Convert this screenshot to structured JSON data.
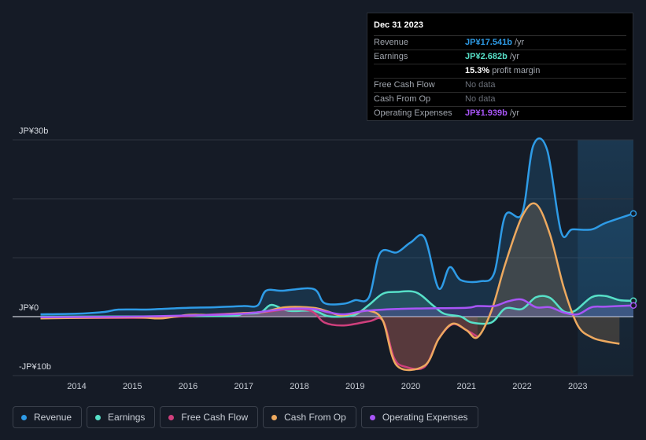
{
  "tooltip": {
    "date": "Dec 31 2023",
    "rows": [
      {
        "label": "Revenue",
        "value": "JP¥17.541b",
        "unit": "/yr",
        "color": "#2e9be6"
      },
      {
        "label": "Earnings",
        "value": "JP¥2.682b",
        "unit": "/yr",
        "color": "#57e0c8"
      },
      {
        "label": "",
        "value": "15.3%",
        "unit": "profit margin",
        "color": "#ffffff"
      },
      {
        "label": "Free Cash Flow",
        "value": "No data",
        "unit": "",
        "color": "nodata"
      },
      {
        "label": "Cash From Op",
        "value": "No data",
        "unit": "",
        "color": "nodata"
      },
      {
        "label": "Operating Expenses",
        "value": "JP¥1.939b",
        "unit": "/yr",
        "color": "#a855f7"
      }
    ]
  },
  "legend": [
    {
      "label": "Revenue",
      "color": "#2e9be6"
    },
    {
      "label": "Earnings",
      "color": "#57e0c8"
    },
    {
      "label": "Free Cash Flow",
      "color": "#cf3f7c"
    },
    {
      "label": "Cash From Op",
      "color": "#eda95f"
    },
    {
      "label": "Operating Expenses",
      "color": "#a855f7"
    }
  ],
  "chart_data": {
    "type": "line",
    "title": "",
    "xlabel": "",
    "ylabel": "",
    "y_tick_labels": [
      "JP¥30b",
      "JP¥0",
      "-JP¥10b"
    ],
    "x_tick_labels": [
      "2014",
      "2015",
      "2016",
      "2017",
      "2018",
      "2019",
      "2020",
      "2021",
      "2022",
      "2023"
    ],
    "ylim": [
      -10,
      30
    ],
    "xlim": [
      2013.3,
      2024.0
    ],
    "highlight_from": 2023.0,
    "series": [
      {
        "name": "Revenue",
        "color": "#2e9be6",
        "points": [
          [
            2013.35,
            0.4
          ],
          [
            2014.0,
            0.5
          ],
          [
            2014.5,
            0.8
          ],
          [
            2014.75,
            1.2
          ],
          [
            2015.25,
            1.2
          ],
          [
            2015.5,
            1.3
          ],
          [
            2016.0,
            1.5
          ],
          [
            2016.5,
            1.6
          ],
          [
            2017.0,
            1.8
          ],
          [
            2017.25,
            1.9
          ],
          [
            2017.4,
            4.4
          ],
          [
            2017.7,
            4.4
          ],
          [
            2018.25,
            4.7
          ],
          [
            2018.45,
            2.3
          ],
          [
            2018.8,
            2.2
          ],
          [
            2019.0,
            2.8
          ],
          [
            2019.25,
            3.3
          ],
          [
            2019.45,
            10.8
          ],
          [
            2019.75,
            10.9
          ],
          [
            2020.0,
            12.6
          ],
          [
            2020.25,
            13.4
          ],
          [
            2020.5,
            4.8
          ],
          [
            2020.7,
            8.4
          ],
          [
            2020.9,
            6.2
          ],
          [
            2021.25,
            6.0
          ],
          [
            2021.5,
            7.4
          ],
          [
            2021.7,
            17.2
          ],
          [
            2022.0,
            17.5
          ],
          [
            2022.2,
            29.0
          ],
          [
            2022.45,
            28.3
          ],
          [
            2022.7,
            14.4
          ],
          [
            2022.9,
            14.8
          ],
          [
            2023.25,
            14.8
          ],
          [
            2023.5,
            15.9
          ],
          [
            2024.0,
            17.5
          ]
        ]
      },
      {
        "name": "Earnings",
        "color": "#57e0c8",
        "points": [
          [
            2013.35,
            0.0
          ],
          [
            2016.5,
            0.1
          ],
          [
            2017.0,
            0.5
          ],
          [
            2017.3,
            0.7
          ],
          [
            2017.5,
            2.0
          ],
          [
            2017.8,
            1.0
          ],
          [
            2018.25,
            1.0
          ],
          [
            2018.5,
            0.1
          ],
          [
            2018.75,
            0.0
          ],
          [
            2019.0,
            0.3
          ],
          [
            2019.25,
            2.0
          ],
          [
            2019.5,
            3.9
          ],
          [
            2019.75,
            4.2
          ],
          [
            2020.1,
            4.1
          ],
          [
            2020.4,
            1.9
          ],
          [
            2020.6,
            0.5
          ],
          [
            2020.9,
            0.0
          ],
          [
            2021.1,
            -1.0
          ],
          [
            2021.45,
            -1.0
          ],
          [
            2021.7,
            1.4
          ],
          [
            2022.0,
            1.3
          ],
          [
            2022.25,
            3.3
          ],
          [
            2022.5,
            3.2
          ],
          [
            2022.75,
            0.9
          ],
          [
            2022.95,
            1.0
          ],
          [
            2023.25,
            3.3
          ],
          [
            2023.5,
            3.5
          ],
          [
            2023.75,
            2.8
          ],
          [
            2024.0,
            2.7
          ]
        ]
      },
      {
        "name": "Free Cash Flow",
        "color": "#cf3f7c",
        "points": [
          [
            2013.35,
            -0.2
          ],
          [
            2015.25,
            -0.2
          ],
          [
            2016.0,
            0.1
          ],
          [
            2016.5,
            0.4
          ],
          [
            2017.0,
            0.6
          ],
          [
            2017.4,
            0.8
          ],
          [
            2017.75,
            1.2
          ],
          [
            2018.2,
            1.0
          ],
          [
            2018.45,
            -1.0
          ],
          [
            2018.8,
            -1.5
          ],
          [
            2019.25,
            -0.8
          ],
          [
            2019.5,
            -0.7
          ],
          [
            2019.7,
            -7.0
          ],
          [
            2019.9,
            -8.5
          ],
          [
            2020.25,
            -8.5
          ],
          [
            2020.5,
            -3.8
          ],
          [
            2020.75,
            -1.3
          ],
          [
            2021.0,
            -2.3
          ],
          [
            2021.2,
            -3.4
          ]
        ]
      },
      {
        "name": "Cash From Op",
        "color": "#eda95f",
        "points": [
          [
            2013.35,
            -0.3
          ],
          [
            2015.0,
            -0.1
          ],
          [
            2015.5,
            -0.3
          ],
          [
            2016.0,
            0.3
          ],
          [
            2016.5,
            0.3
          ],
          [
            2017.0,
            0.6
          ],
          [
            2017.35,
            0.8
          ],
          [
            2017.75,
            1.6
          ],
          [
            2018.25,
            1.5
          ],
          [
            2018.5,
            0.9
          ],
          [
            2018.75,
            0.2
          ],
          [
            2019.0,
            0.6
          ],
          [
            2019.25,
            1.0
          ],
          [
            2019.5,
            -0.7
          ],
          [
            2019.75,
            -8.3
          ],
          [
            2020.25,
            -8.3
          ],
          [
            2020.5,
            -3.8
          ],
          [
            2020.75,
            -1.2
          ],
          [
            2021.0,
            -2.3
          ],
          [
            2021.2,
            -3.5
          ],
          [
            2021.45,
            1.0
          ],
          [
            2021.7,
            9.0
          ],
          [
            2022.0,
            17.0
          ],
          [
            2022.25,
            19.1
          ],
          [
            2022.5,
            14.0
          ],
          [
            2022.75,
            4.9
          ],
          [
            2023.0,
            -1.5
          ],
          [
            2023.25,
            -3.5
          ],
          [
            2023.5,
            -4.2
          ],
          [
            2023.75,
            -4.6
          ]
        ]
      },
      {
        "name": "Operating Expenses",
        "color": "#a855f7",
        "points": [
          [
            2013.35,
            -0.1
          ],
          [
            2015.0,
            0.0
          ],
          [
            2016.0,
            0.2
          ],
          [
            2017.0,
            0.5
          ],
          [
            2017.75,
            1.3
          ],
          [
            2018.25,
            1.3
          ],
          [
            2018.5,
            0.8
          ],
          [
            2018.8,
            0.4
          ],
          [
            2019.2,
            1.0
          ],
          [
            2019.75,
            1.3
          ],
          [
            2020.25,
            1.4
          ],
          [
            2021.0,
            1.5
          ],
          [
            2021.2,
            1.8
          ],
          [
            2021.5,
            1.8
          ],
          [
            2021.75,
            2.6
          ],
          [
            2022.0,
            2.9
          ],
          [
            2022.25,
            1.6
          ],
          [
            2022.5,
            1.6
          ],
          [
            2022.75,
            0.7
          ],
          [
            2023.0,
            0.4
          ],
          [
            2023.25,
            1.6
          ],
          [
            2023.5,
            1.7
          ],
          [
            2024.0,
            1.9
          ]
        ]
      }
    ]
  }
}
